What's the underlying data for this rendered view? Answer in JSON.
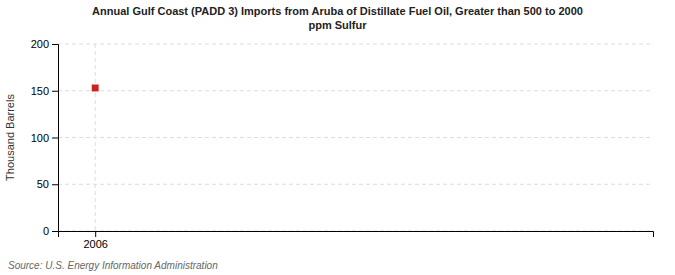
{
  "chart_data": {
    "type": "scatter",
    "title": "Annual Gulf Coast (PADD 3) Imports from Aruba of Distillate Fuel Oil, Greater than 500 to 2000\nppm Sulfur",
    "ylabel": "Thousand Barrels",
    "annotations": [
      "Source: U.S. Energy Information Administration"
    ],
    "x": [
      2006
    ],
    "values": [
      153
    ],
    "color": "#cc2222",
    "marker": "square",
    "xlim": [
      2005.6,
      2012
    ],
    "ylim": [
      0,
      200
    ],
    "xticks": [
      2006
    ],
    "yticks": [
      0,
      50,
      100,
      150,
      200
    ],
    "grid": true
  }
}
